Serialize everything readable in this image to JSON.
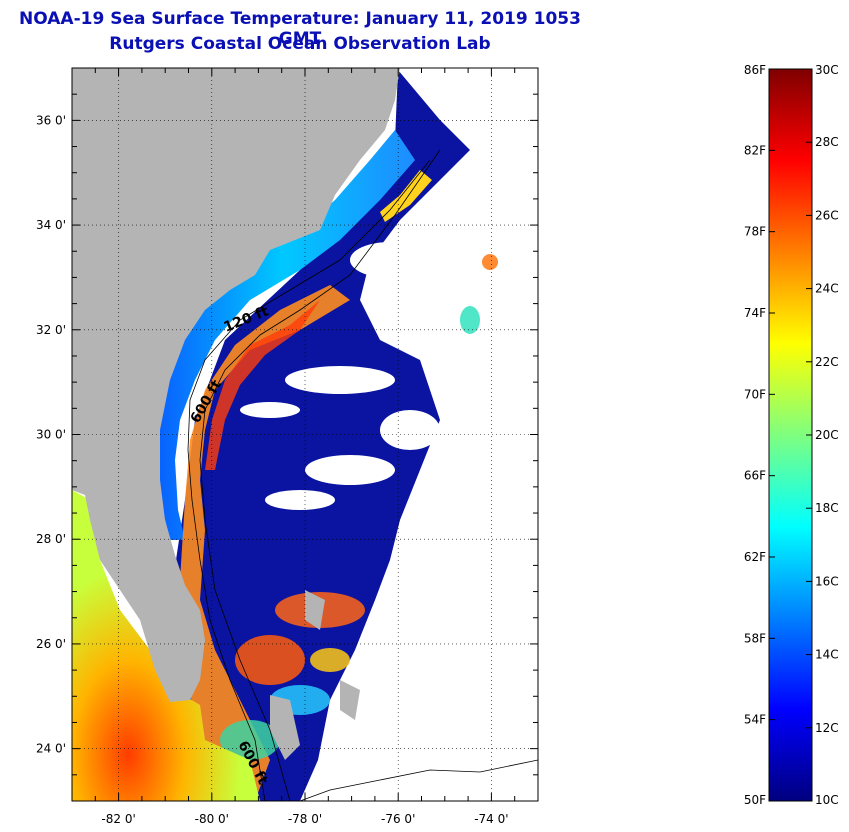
{
  "header": {
    "title": "NOAA-19 Sea Surface Temperature:  January 11, 2019 1053 GMT",
    "subtitle": "Rutgers Coastal Ocean Observation Lab"
  },
  "map": {
    "lon_range": [
      -83,
      -73
    ],
    "lat_range": [
      23,
      37
    ],
    "lon_ticks": [
      {
        "value": -82,
        "label": "-82 0'"
      },
      {
        "value": -80,
        "label": "-80 0'"
      },
      {
        "value": -78,
        "label": "-78 0'"
      },
      {
        "value": -76,
        "label": "-76 0'"
      },
      {
        "value": -74,
        "label": "-74 0'"
      }
    ],
    "lat_ticks": [
      {
        "value": 36,
        "label": "36 0'"
      },
      {
        "value": 34,
        "label": "34 0'"
      },
      {
        "value": 32,
        "label": "32 0'"
      },
      {
        "value": 30,
        "label": "30 0'"
      },
      {
        "value": 28,
        "label": "28 0'"
      },
      {
        "value": 26,
        "label": "26 0'"
      },
      {
        "value": 24,
        "label": "24 0'"
      }
    ],
    "isobaths": [
      {
        "label": "120 ft"
      },
      {
        "label": "600 ft"
      },
      {
        "label": "600 ft"
      }
    ],
    "colors": {
      "land": "#b4b4b4",
      "no_data": "#ffffff",
      "cold_water": "#0a10a0"
    }
  },
  "colorbar": {
    "range_c": [
      10,
      30
    ],
    "range_f": [
      50,
      86
    ],
    "f_labels": [
      "86F",
      "82F",
      "78F",
      "74F",
      "70F",
      "66F",
      "62F",
      "58F",
      "54F",
      "50F"
    ],
    "c_labels": [
      "30C",
      "28C",
      "26C",
      "24C",
      "22C",
      "20C",
      "18C",
      "16C",
      "14C",
      "12C",
      "10C"
    ],
    "colormap": [
      "#00007f",
      "#0000ff",
      "#007fff",
      "#00ffff",
      "#7fff7f",
      "#ffff00",
      "#ff7f00",
      "#ff0000",
      "#7f0000"
    ]
  }
}
